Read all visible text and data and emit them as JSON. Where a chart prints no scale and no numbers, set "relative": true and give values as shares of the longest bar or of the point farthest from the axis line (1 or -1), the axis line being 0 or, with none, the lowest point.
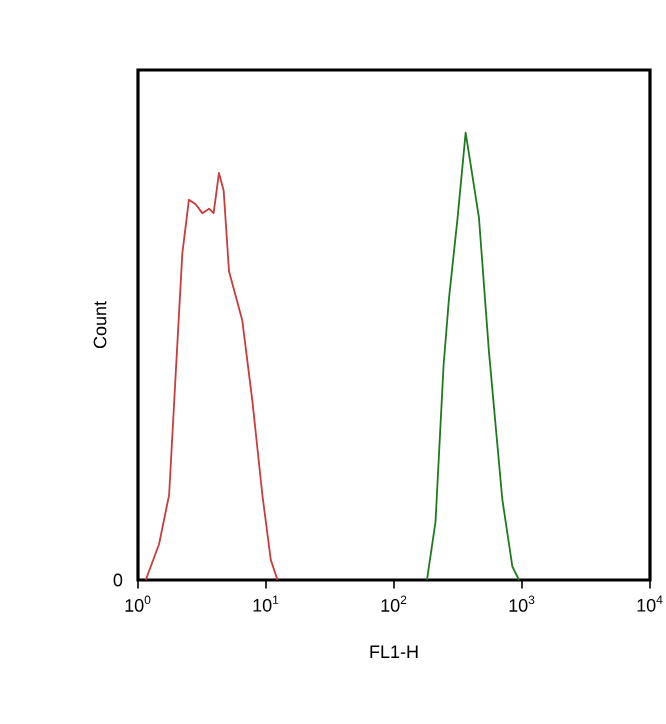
{
  "chart_data": {
    "type": "line",
    "xlabel": "FL1-H",
    "ylabel": "Count",
    "log": "x",
    "relative": true,
    "xlim": [
      1,
      10000
    ],
    "xticks": [
      {
        "value": 1,
        "label": "10$^{0}$"
      },
      {
        "value": 10,
        "label": "10$^{1}$"
      },
      {
        "value": 100,
        "label": "10$^{2}$"
      },
      {
        "value": 1000,
        "label": "10$^{3}$"
      },
      {
        "value": 10000,
        "label": "10$^{4}$"
      }
    ],
    "annotations": [
      "0"
    ],
    "series": [
      {
        "color": "#cc3b3b",
        "x": [
          1.15,
          1.46,
          1.75,
          1.97,
          2.22,
          2.5,
          2.82,
          3.18,
          3.59,
          3.9,
          4.29,
          4.67,
          5.14,
          6.53,
          7.83,
          9.37,
          10.9,
          12.3
        ],
        "values": [
          0,
          0.08,
          0.19,
          0.46,
          0.73,
          0.85,
          0.84,
          0.82,
          0.83,
          0.82,
          0.91,
          0.87,
          0.69,
          0.58,
          0.4,
          0.19,
          0.045,
          0
        ]
      },
      {
        "color": "#1f7a1f",
        "x": [
          181,
          211,
          244,
          269,
          314,
          363,
          461,
          552,
          702,
          841,
          948
        ],
        "values": [
          0,
          0.13,
          0.48,
          0.63,
          0.81,
          1,
          0.81,
          0.51,
          0.18,
          0.03,
          0
        ]
      }
    ],
    "grid": false,
    "marker": "none",
    "line_style": "solid"
  }
}
